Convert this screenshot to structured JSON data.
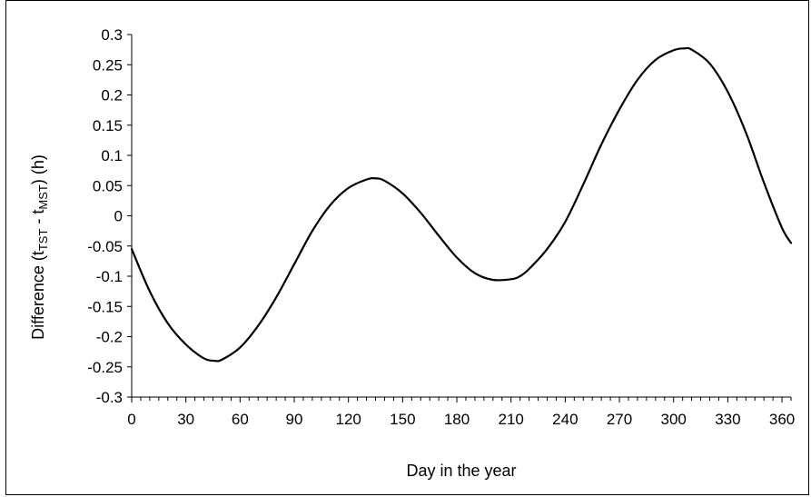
{
  "chart_data": {
    "type": "line",
    "title": "",
    "xlabel": "Day in the year",
    "ylabel": {
      "prefix": "Difference (t",
      "sub1": "TST",
      "middle": " - t",
      "sub2": "MST",
      "suffix": ") (h)"
    },
    "xlim": [
      0,
      365
    ],
    "ylim": [
      -0.3,
      0.3
    ],
    "x_ticks": [
      0,
      30,
      60,
      90,
      120,
      150,
      180,
      210,
      240,
      270,
      300,
      330,
      360
    ],
    "x_tick_labels": [
      "0",
      "30",
      "60",
      "90",
      "120",
      "150",
      "180",
      "210",
      "240",
      "270",
      "300",
      "330",
      "360"
    ],
    "y_ticks": [
      0.3,
      0.25,
      0.2,
      0.15,
      0.1,
      0.05,
      0,
      -0.05,
      -0.1,
      -0.15,
      -0.2,
      -0.25,
      -0.3
    ],
    "y_tick_labels": [
      "0.3",
      "0.25",
      "0.2",
      "0.15",
      "0.1",
      "0.05",
      "0",
      "-0.05",
      "-0.1",
      "-0.15",
      "-0.2",
      "-0.25",
      "-0.3"
    ],
    "grid": false,
    "legend": "none",
    "line_color": "#000000",
    "series": [
      {
        "x": [
          0,
          10,
          20,
          30,
          40,
          46,
          50,
          60,
          70,
          80,
          90,
          100,
          110,
          120,
          130,
          135,
          140,
          150,
          160,
          170,
          180,
          190,
          200,
          210,
          215,
          220,
          230,
          240,
          250,
          260,
          270,
          280,
          290,
          300,
          306,
          310,
          320,
          330,
          340,
          350,
          360,
          365
        ],
        "values": [
          -0.055,
          -0.125,
          -0.178,
          -0.213,
          -0.236,
          -0.24,
          -0.238,
          -0.218,
          -0.182,
          -0.135,
          -0.08,
          -0.025,
          0.018,
          0.046,
          0.06,
          0.062,
          0.058,
          0.037,
          0.005,
          -0.033,
          -0.069,
          -0.095,
          -0.106,
          -0.105,
          -0.1,
          -0.088,
          -0.055,
          -0.01,
          0.052,
          0.118,
          0.176,
          0.225,
          0.258,
          0.274,
          0.277,
          0.275,
          0.252,
          0.205,
          0.138,
          0.055,
          -0.02,
          -0.045
        ]
      }
    ]
  }
}
